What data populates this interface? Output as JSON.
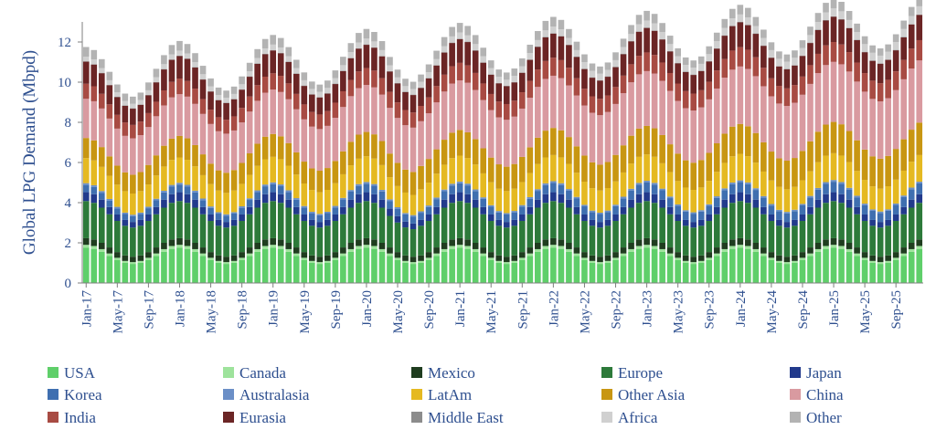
{
  "chart_data": {
    "type": "bar",
    "stacked": true,
    "ylabel": "Global LPG Demand (Mbpd)",
    "ylim": [
      0,
      13
    ],
    "yticks": [
      0,
      2,
      4,
      6,
      8,
      10,
      12
    ],
    "grid": false,
    "legend_position": "bottom",
    "x_tick_labels": [
      "Jan-17",
      "May-17",
      "Sep-17",
      "Jan-18",
      "May-18",
      "Sep-18",
      "Jan-19",
      "May-19",
      "Sep-19",
      "Jan-20",
      "May-20",
      "Sep-20",
      "Jan-21",
      "May-21",
      "Sep-21",
      "Jan-22",
      "May-22",
      "Sep-22",
      "Jan-23",
      "May-23",
      "Sep-23",
      "Jan-24",
      "May-24",
      "Sep-24",
      "Jan-25",
      "May-25",
      "Sep-25"
    ],
    "start_month": "Jan-17",
    "months": 108,
    "series": [
      {
        "name": "USA",
        "color": "#5fcf6a",
        "base": 1.35,
        "amp": 0.4,
        "trend": 0.0
      },
      {
        "name": "Canada",
        "color": "#9ee39c",
        "base": 0.12,
        "amp": 0.03,
        "trend": 0.0
      },
      {
        "name": "Mexico",
        "color": "#1f3d1f",
        "base": 0.3,
        "amp": 0.03,
        "trend": 0.0
      },
      {
        "name": "Europe",
        "color": "#2d7a3a",
        "base": 1.65,
        "amp": 0.2,
        "trend": 0.0
      },
      {
        "name": "Japan",
        "color": "#223a8c",
        "base": 0.36,
        "amp": 0.08,
        "trend": 0.0
      },
      {
        "name": "Korea",
        "color": "#3f6fb0",
        "base": 0.32,
        "amp": 0.04,
        "trend": 0.02
      },
      {
        "name": "Australasia",
        "color": "#6b8fc7",
        "base": 0.08,
        "amp": 0.01,
        "trend": 0.0
      },
      {
        "name": "LatAm",
        "color": "#e5b921",
        "base": 1.15,
        "amp": 0.1,
        "trend": 0.01
      },
      {
        "name": "Other Asia",
        "color": "#c89612",
        "base": 0.95,
        "amp": 0.05,
        "trend": 0.07
      },
      {
        "name": "China",
        "color": "#d99aa0",
        "base": 1.85,
        "amp": 0.1,
        "trend": 0.13
      },
      {
        "name": "India",
        "color": "#a84b43",
        "base": 0.7,
        "amp": 0.05,
        "trend": 0.03
      },
      {
        "name": "Eurasia",
        "color": "#6b2525",
        "base": 0.95,
        "amp": 0.15,
        "trend": 0.02
      },
      {
        "name": "Middle East",
        "color": "#8c8c8c",
        "base": 0.02,
        "amp": 0.0,
        "trend": 0.0
      },
      {
        "name": "Africa",
        "color": "#d0d0d0",
        "base": 0.22,
        "amp": 0.01,
        "trend": 0.02
      },
      {
        "name": "Other",
        "color": "#b3b3b3",
        "base": 0.42,
        "amp": 0.06,
        "trend": 0.0
      }
    ],
    "covid_dip": {
      "month_index": 40,
      "values_mbpd": -0.3
    }
  }
}
